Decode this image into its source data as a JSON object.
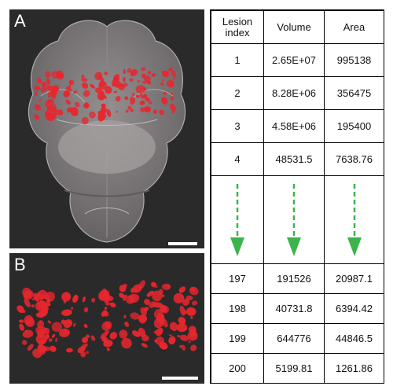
{
  "panel_a": {
    "label": "A"
  },
  "panel_b": {
    "label": "B"
  },
  "table": {
    "headers": [
      "Lesion\nindex",
      "Volume",
      "Area"
    ],
    "rows_top": [
      [
        "1",
        "2.65E+07",
        "995138"
      ],
      [
        "2",
        "8.28E+06",
        "356475"
      ],
      [
        "3",
        "4.58E+06",
        "195400"
      ],
      [
        "4",
        "48531.5",
        "7638.76"
      ]
    ],
    "rows_bottom": [
      [
        "197",
        "191526",
        "20987.1"
      ],
      [
        "198",
        "40731.8",
        "6394.42"
      ],
      [
        "199",
        "644776",
        "44846.5"
      ],
      [
        "200",
        "5199.81",
        "1261.86"
      ]
    ]
  },
  "colors": {
    "lesion": "#e8262e",
    "arrow": "#3cb44b",
    "panel_bg": "#2a2a2a"
  }
}
